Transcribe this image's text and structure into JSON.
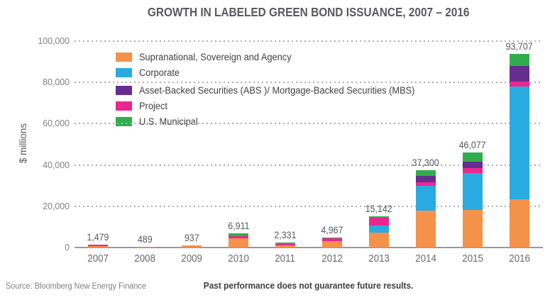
{
  "title": "GROWTH IN LABELED GREEN BOND ISSUANCE, 2007 – 2016",
  "y_axis_title": "$ millions",
  "footer": {
    "source": "Source: Bloomberg New Energy Finance",
    "disclaimer": "Past performance does not guarantee future results."
  },
  "colors": {
    "supranational": "#F4914A",
    "corporate": "#29ABE2",
    "abs_mbs": "#662D91",
    "project": "#EC268F",
    "municipal": "#2FAD4D",
    "title_text": "#595A5E",
    "gridline": "#ACAEB1",
    "axis_line": "#97989B"
  },
  "legend": {
    "items": [
      {
        "label": "Supranational, Sovereign and Agency",
        "color": "#F4914A",
        "gap_before": false
      },
      {
        "label": "Corporate",
        "color": "#29ABE2",
        "gap_before": false
      },
      {
        "label": "Asset-Backed Securities (ABS )/ Mortgage-Backed Securities (MBS)",
        "color": "#662D91",
        "gap_before": true
      },
      {
        "label": "Project",
        "color": "#EC268F",
        "gap_before": false
      },
      {
        "label": "U.S. Municipal",
        "color": "#2FAD4D",
        "gap_before": false
      }
    ]
  },
  "chart_data": {
    "type": "bar",
    "stacked": true,
    "title": "GROWTH IN LABELED GREEN BOND ISSUANCE, 2007 – 2016",
    "xlabel": "",
    "ylabel": "$ millions",
    "ylim": [
      0,
      100000
    ],
    "yticks": [
      0,
      20000,
      40000,
      60000,
      80000,
      100000
    ],
    "ytick_labels": [
      "0",
      "20,000",
      "40,000",
      "60,000",
      "80,000",
      "100,000"
    ],
    "grid": "horizontal-dotted",
    "legend_position": "inside-upper-left",
    "categories": [
      "2007",
      "2008",
      "2009",
      "2010",
      "2011",
      "2012",
      "2013",
      "2014",
      "2015",
      "2016"
    ],
    "totals": [
      1479,
      489,
      937,
      6911,
      2331,
      4967,
      15142,
      37300,
      46077,
      93707
    ],
    "total_labels": [
      "1,479",
      "489",
      "937",
      "6,911",
      "2,331",
      "4,967",
      "15,142",
      "37,300",
      "46,077",
      "93,707"
    ],
    "stack_order_note": "series listed bottom-to-top as stacked in each bar; values estimated from pixel heights, summing to labeled totals",
    "series": [
      {
        "name": "Supranational, Sovereign and Agency",
        "color": "#F4914A",
        "values": [
          729,
          489,
          937,
          4511,
          1181,
          3150,
          7200,
          18000,
          18300,
          23500
        ]
      },
      {
        "name": "Corporate",
        "color": "#29ABE2",
        "values": [
          0,
          0,
          0,
          0,
          0,
          0,
          3450,
          12040,
          17800,
          54400
        ]
      },
      {
        "name": "Project",
        "color": "#EC268F",
        "values": [
          750,
          0,
          0,
          1000,
          500,
          1217,
          3850,
          1720,
          2500,
          2600
        ]
      },
      {
        "name": "Asset-Backed Securities (ABS )/ Mortgage-Backed Securities (MBS)",
        "color": "#662D91",
        "values": [
          0,
          0,
          0,
          0,
          0,
          0,
          0,
          2890,
          2900,
          7500
        ]
      },
      {
        "name": "U.S. Municipal",
        "color": "#2FAD4D",
        "values": [
          0,
          0,
          0,
          1400,
          650,
          600,
          642,
          2650,
          4577,
          5707
        ]
      }
    ]
  }
}
